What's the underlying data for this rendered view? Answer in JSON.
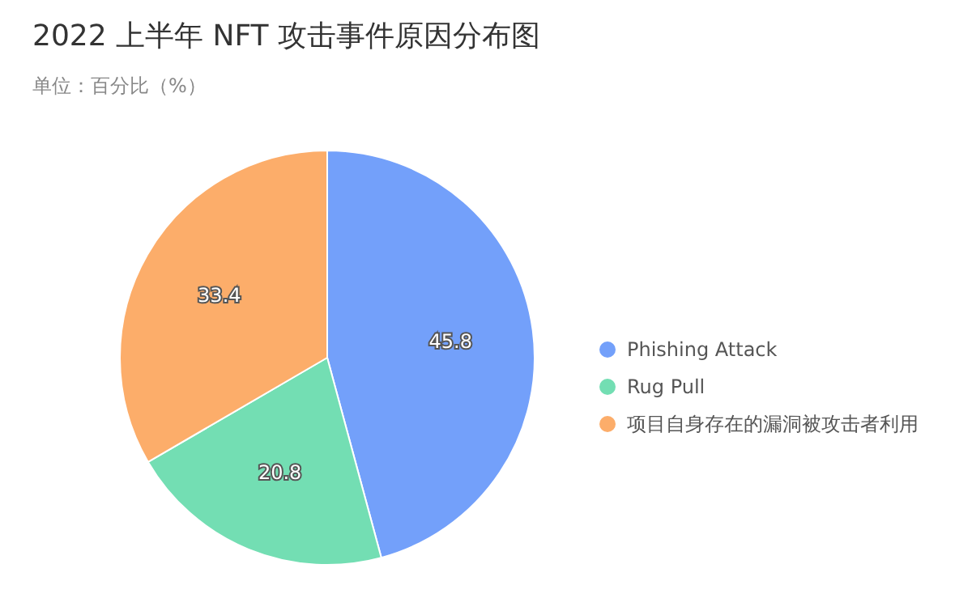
{
  "chart_data": {
    "type": "pie",
    "title": "2022 上半年 NFT 攻击事件原因分布图",
    "subtitle": "单位：百分比（%）",
    "categories": [
      "Phishing Attack",
      "Rug Pull",
      "项目自身存在的漏洞被攻击者利用"
    ],
    "values": [
      45.8,
      20.8,
      33.4
    ],
    "colors": [
      "#73a0fa",
      "#73deb3",
      "#fcad6a"
    ],
    "data_labels": true,
    "legend": "right"
  }
}
